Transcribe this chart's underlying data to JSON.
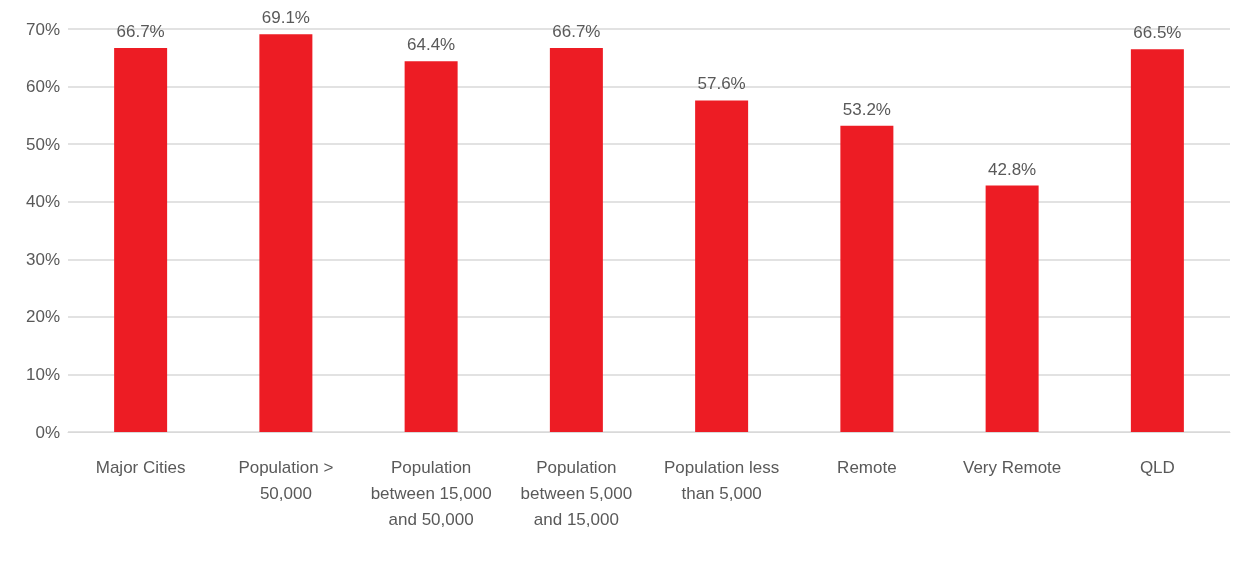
{
  "chart_data": {
    "type": "bar",
    "categories": [
      "Major Cities",
      "Population > 50,000",
      "Population between 15,000 and 50,000",
      "Population between 5,000 and 15,000",
      "Population less than 5,000",
      "Remote",
      "Very Remote",
      "QLD"
    ],
    "values": [
      66.7,
      69.1,
      64.4,
      66.7,
      57.6,
      53.2,
      42.8,
      66.5
    ],
    "value_labels": [
      "66.7%",
      "69.1%",
      "64.4%",
      "66.7%",
      "57.6%",
      "53.2%",
      "42.8%",
      "66.5%"
    ],
    "color": "#ed1c24",
    "ylim": [
      0,
      70
    ],
    "yticks": [
      {
        "value": 0,
        "label": "0%"
      },
      {
        "value": 10,
        "label": "10%"
      },
      {
        "value": 20,
        "label": "20%"
      },
      {
        "value": 30,
        "label": "30%"
      },
      {
        "value": 40,
        "label": "40%"
      },
      {
        "value": 50,
        "label": "50%"
      },
      {
        "value": 60,
        "label": "60%"
      },
      {
        "value": 70,
        "label": "70%"
      }
    ],
    "grid": "y"
  }
}
